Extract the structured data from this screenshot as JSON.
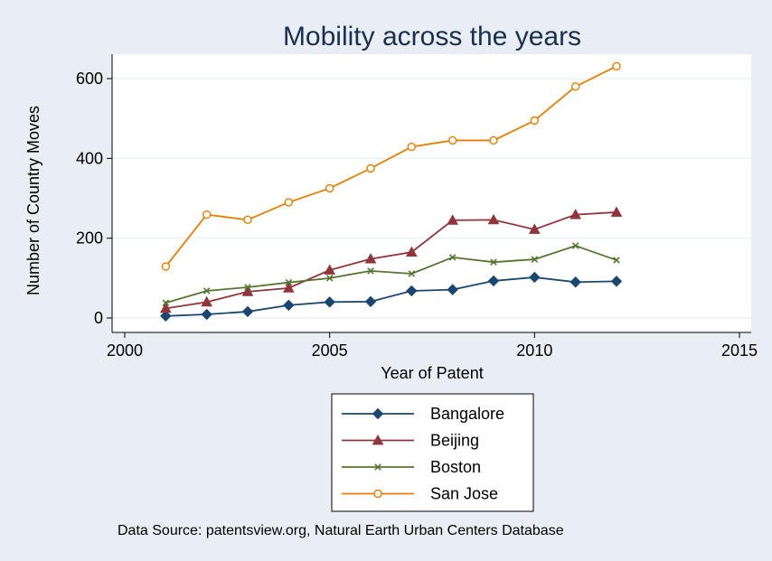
{
  "chart_data": {
    "type": "line",
    "title": "Mobility across the years",
    "xlabel": "Year of Patent",
    "ylabel": "Number of Country Moves",
    "xlim": [
      2000,
      2015
    ],
    "ylim": [
      0,
      600
    ],
    "xticks": [
      2000,
      2005,
      2010,
      2015
    ],
    "yticks": [
      0,
      200,
      400,
      600
    ],
    "grid": "horizontal",
    "legend_position": "bottom",
    "x": [
      2001,
      2002,
      2003,
      2004,
      2005,
      2006,
      2007,
      2008,
      2009,
      2010,
      2011,
      2012
    ],
    "series": [
      {
        "name": "Bangalore",
        "color": "#1a476f",
        "marker": "diamond",
        "values": [
          5,
          9,
          16,
          32,
          40,
          41,
          68,
          71,
          93,
          102,
          90,
          92
        ]
      },
      {
        "name": "Beijing",
        "color": "#90353b",
        "marker": "triangle",
        "values": [
          24,
          40,
          66,
          75,
          120,
          148,
          165,
          245,
          246,
          222,
          259,
          265
        ]
      },
      {
        "name": "Boston",
        "color": "#55752f",
        "marker": "x",
        "values": [
          38,
          68,
          77,
          89,
          100,
          118,
          111,
          152,
          140,
          147,
          181,
          145
        ]
      },
      {
        "name": "San Jose",
        "color": "#e37e00",
        "marker": "circle",
        "values": [
          129,
          259,
          246,
          290,
          325,
          375,
          429,
          445,
          445,
          495,
          580,
          631
        ]
      }
    ],
    "note": "Data Source: patentsview.org, Natural Earth Urban Centers Database"
  }
}
